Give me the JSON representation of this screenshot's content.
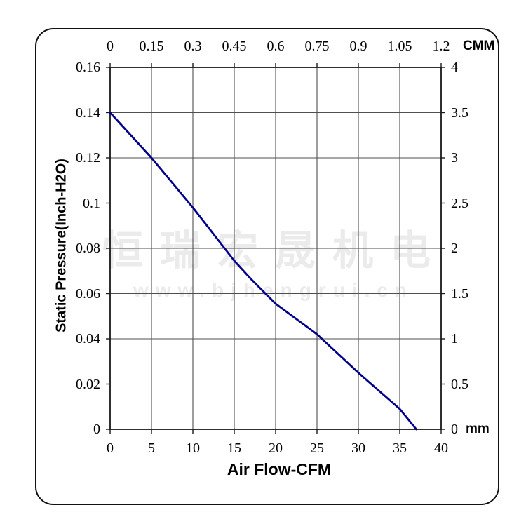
{
  "watermark": {
    "line1": "恒瑞宏晟机电",
    "line2": "www.bjhengrui.cn"
  },
  "colors": {
    "curve": "#00008B",
    "grid": "#4f4f4f",
    "border": "#1a1a1a",
    "watermark": "#ebebeb",
    "text": "#000000"
  },
  "chart_data": {
    "type": "line",
    "description": "Fan static pressure vs air flow performance curve",
    "grid": true,
    "series": [
      {
        "name": "static-pressure-curve",
        "color": "#00008B",
        "x": [
          0,
          5,
          10,
          15,
          17,
          20,
          25,
          30,
          35,
          37
        ],
        "y": [
          0.14,
          0.12,
          0.098,
          0.0745,
          0.0665,
          0.0555,
          0.042,
          0.025,
          0.009,
          0.0
        ]
      }
    ],
    "x_axis_bottom": {
      "title": "Air Flow-CFM",
      "range": [
        0,
        40
      ],
      "ticks": [
        "0",
        "5",
        "10",
        "15",
        "20",
        "25",
        "30",
        "35",
        "40"
      ]
    },
    "x_axis_top": {
      "unit": "CMM",
      "range": [
        0,
        1.2
      ],
      "ticks": [
        "0",
        "0.15",
        "0.3",
        "0.45",
        "0.6",
        "0.75",
        "0.9",
        "1.05",
        "1.2"
      ]
    },
    "y_axis_left": {
      "title": "Static Pressure(Inch-H2O)",
      "range": [
        0,
        0.16
      ],
      "ticks": [
        "0.16",
        "0.14",
        "0.12",
        "0.1",
        "0.08",
        "0.06",
        "0.04",
        "0.02",
        "0"
      ]
    },
    "y_axis_right": {
      "unit": "mm",
      "range": [
        0,
        4
      ],
      "ticks": [
        "4",
        "3.5",
        "3",
        "2.5",
        "2",
        "1.5",
        "1",
        "0.5",
        "0"
      ]
    }
  }
}
